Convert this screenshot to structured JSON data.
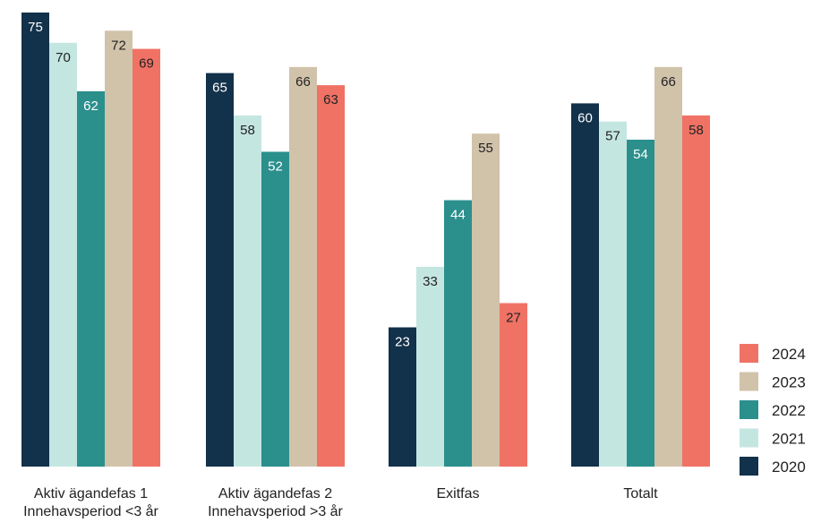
{
  "chart_data": {
    "type": "bar",
    "title": "",
    "xlabel": "",
    "ylabel": "",
    "ylim": [
      0,
      75
    ],
    "grid": false,
    "legend_position": "bottom-right",
    "categories": [
      [
        "Aktiv ägandefas 1",
        "Innehavsperiod <3 år"
      ],
      [
        "Aktiv ägandefas 2",
        "Innehavsperiod >3 år"
      ],
      [
        "Exitfas"
      ],
      [
        "Totalt"
      ]
    ],
    "series": [
      {
        "name": "2020",
        "color": "#12314a",
        "label_color": "#ffffff",
        "values": [
          75,
          65,
          23,
          60
        ]
      },
      {
        "name": "2021",
        "color": "#c4e6e1",
        "label_color": "#222222",
        "values": [
          70,
          58,
          33,
          57
        ]
      },
      {
        "name": "2022",
        "color": "#2b8f8c",
        "label_color": "#ffffff",
        "values": [
          62,
          52,
          44,
          54
        ]
      },
      {
        "name": "2023",
        "color": "#d1c2aa",
        "label_color": "#222222",
        "values": [
          72,
          66,
          55,
          66
        ]
      },
      {
        "name": "2024",
        "color": "#ef7265",
        "label_color": "#222222",
        "values": [
          69,
          63,
          27,
          58
        ]
      }
    ],
    "legend_order": [
      "2024",
      "2023",
      "2022",
      "2021",
      "2020"
    ]
  }
}
